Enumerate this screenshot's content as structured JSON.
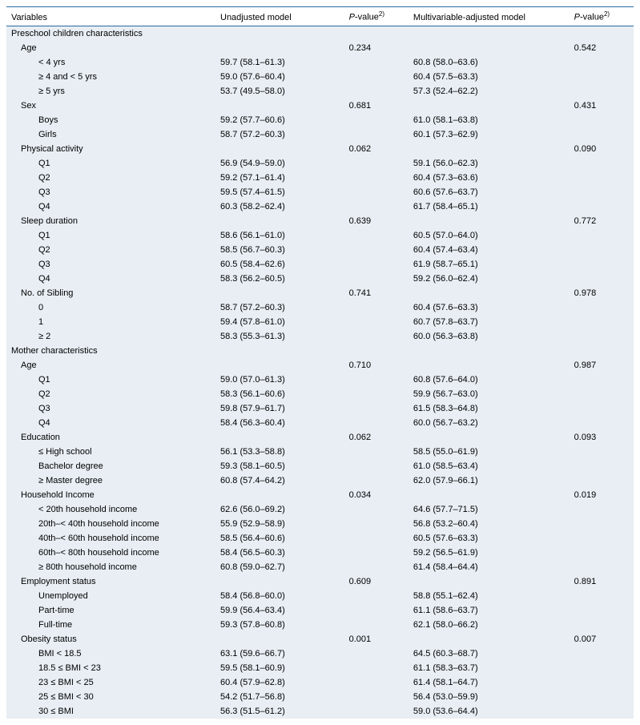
{
  "columns": {
    "variables": "Variables",
    "unadjusted": "Unadjusted model",
    "p1_prefix": "P",
    "p1_suffix": "-value",
    "p1_sup": "2)",
    "adjusted": "Multivariable-adjusted model",
    "p2_prefix": "P",
    "p2_suffix": "-value",
    "p2_sup": "2)"
  },
  "sections": [
    {
      "title": "Preschool children characteristics",
      "groups": [
        {
          "label": "Age",
          "p1": "0.234",
          "p2": "0.542",
          "rows": [
            {
              "l": "< 4 yrs",
              "u": "59.7 (58.1–61.3)",
              "a": "60.8 (58.0–63.6)"
            },
            {
              "l": "≥ 4 and < 5 yrs",
              "u": "59.0 (57.6–60.4)",
              "a": "60.4 (57.5–63.3)"
            },
            {
              "l": "≥ 5 yrs",
              "u": "53.7 (49.5–58.0)",
              "a": "57.3 (52.4–62.2)"
            }
          ]
        },
        {
          "label": "Sex",
          "p1": "0.681",
          "p2": "0.431",
          "rows": [
            {
              "l": "Boys",
              "u": "59.2 (57.7–60.6)",
              "a": "61.0 (58.1–63.8)"
            },
            {
              "l": "Girls",
              "u": "58.7 (57.2–60.3)",
              "a": "60.1 (57.3–62.9)"
            }
          ]
        },
        {
          "label": "Physical activity",
          "p1": "0.062",
          "p2": "0.090",
          "rows": [
            {
              "l": "Q1",
              "u": "56.9 (54.9–59.0)",
              "a": "59.1 (56.0–62.3)"
            },
            {
              "l": "Q2",
              "u": "59.2 (57.1–61.4)",
              "a": "60.4 (57.3–63.6)"
            },
            {
              "l": "Q3",
              "u": "59.5 (57.4–61.5)",
              "a": "60.6 (57.6–63.7)"
            },
            {
              "l": "Q4",
              "u": "60.3 (58.2–62.4)",
              "a": "61.7 (58.4–65.1)"
            }
          ]
        },
        {
          "label": "Sleep duration",
          "p1": "0.639",
          "p2": "0.772",
          "rows": [
            {
              "l": "Q1",
              "u": "58.6 (56.1–61.0)",
              "a": "60.5 (57.0–64.0)"
            },
            {
              "l": "Q2",
              "u": "58.5 (56.7–60.3)",
              "a": "60.4 (57.4–63.4)"
            },
            {
              "l": "Q3",
              "u": "60.5 (58.4–62.6)",
              "a": "61.9 (58.7–65.1)"
            },
            {
              "l": "Q4",
              "u": "58.3 (56.2–60.5)",
              "a": "59.2 (56.0–62.4)"
            }
          ]
        },
        {
          "label": "No. of Sibling",
          "p1": "0.741",
          "p2": "0.978",
          "rows": [
            {
              "l": "0",
              "u": "58.7 (57.2–60.3)",
              "a": "60.4 (57.6–63.3)"
            },
            {
              "l": "1",
              "u": "59.4 (57.8–61.0)",
              "a": "60.7 (57.8–63.7)"
            },
            {
              "l": "≥ 2",
              "u": "58.3 (55.3–61.3)",
              "a": "60.0 (56.3–63.8)"
            }
          ]
        }
      ]
    },
    {
      "title": "Mother characteristics",
      "groups": [
        {
          "label": "Age",
          "p1": "0.710",
          "p2": "0.987",
          "rows": [
            {
              "l": "Q1",
              "u": "59.0 (57.0–61.3)",
              "a": "60.8 (57.6–64.0)"
            },
            {
              "l": "Q2",
              "u": "58.3 (56.1–60.6)",
              "a": "59.9 (56.7–63.0)"
            },
            {
              "l": "Q3",
              "u": "59.8 (57.9–61.7)",
              "a": "61.5 (58.3–64.8)"
            },
            {
              "l": "Q4",
              "u": "58.4 (56.3–60.4)",
              "a": "60.0 (56.7–63.2)"
            }
          ]
        },
        {
          "label": "Education",
          "p1": "0.062",
          "p2": "0.093",
          "rows": [
            {
              "l": "≤ High school",
              "u": "56.1 (53.3–58.8)",
              "a": "58.5 (55.0–61.9)"
            },
            {
              "l": "Bachelor degree",
              "u": "59.3 (58.1–60.5)",
              "a": "61.0 (58.5–63.4)"
            },
            {
              "l": "≥ Master degree",
              "u": "60.8 (57.4–64.2)",
              "a": "62.0 (57.9–66.1)"
            }
          ]
        },
        {
          "label": "Household Income",
          "p1": "0.034",
          "p2": "0.019",
          "rows": [
            {
              "l": "< 20th household income",
              "u": "62.6 (56.0–69.2)",
              "a": "64.6 (57.7–71.5)"
            },
            {
              "l": "20th–< 40th household income",
              "u": "55.9 (52.9–58.9)",
              "a": "56.8 (53.2–60.4)"
            },
            {
              "l": "40th–< 60th household income",
              "u": "58.5 (56.4–60.6)",
              "a": "60.5 (57.6–63.3)"
            },
            {
              "l": "60th–< 80th household income",
              "u": "58.4 (56.5–60.3)",
              "a": "59.2 (56.5–61.9)"
            },
            {
              "l": "≥ 80th household income",
              "u": "60.8 (59.0–62.7)",
              "a": "61.4 (58.4–64.4)"
            }
          ]
        },
        {
          "label": "Employment status",
          "p1": "0.609",
          "p2": "0.891",
          "rows": [
            {
              "l": "Unemployed",
              "u": "58.4 (56.8–60.0)",
              "a": "58.8 (55.1–62.4)"
            },
            {
              "l": "Part-time",
              "u": "59.9 (56.4–63.4)",
              "a": "61.1 (58.6–63.7)"
            },
            {
              "l": "Full-time",
              "u": "59.3 (57.8–60.8)",
              "a": "62.1 (58.0–66.2)"
            }
          ]
        },
        {
          "label": "Obesity status",
          "p1": "0.001",
          "p2": "0.007",
          "rows": [
            {
              "l": "BMI < 18.5",
              "u": "63.1 (59.6–66.7)",
              "a": "64.5 (60.3–68.7)"
            },
            {
              "l": "18.5 ≤ BMI < 23",
              "u": "59.5 (58.1–60.9)",
              "a": "61.1 (58.3–63.7)"
            },
            {
              "l": "23 ≤ BMI < 25",
              "u": "60.4 (57.9–62.8)",
              "a": "61.4 (58.1–64.7)"
            },
            {
              "l": "25 ≤ BMI < 30",
              "u": "54.2 (51.7–56.8)",
              "a": "56.4 (53.0–59.9)"
            },
            {
              "l": "30 ≤ BMI",
              "u": "56.3 (51.5–61.2)",
              "a": "59.0 (53.6–64.4)"
            }
          ]
        }
      ]
    }
  ],
  "styles": {
    "section_bg": "#e8eef4",
    "rule_color": "#2a6aa0"
  }
}
